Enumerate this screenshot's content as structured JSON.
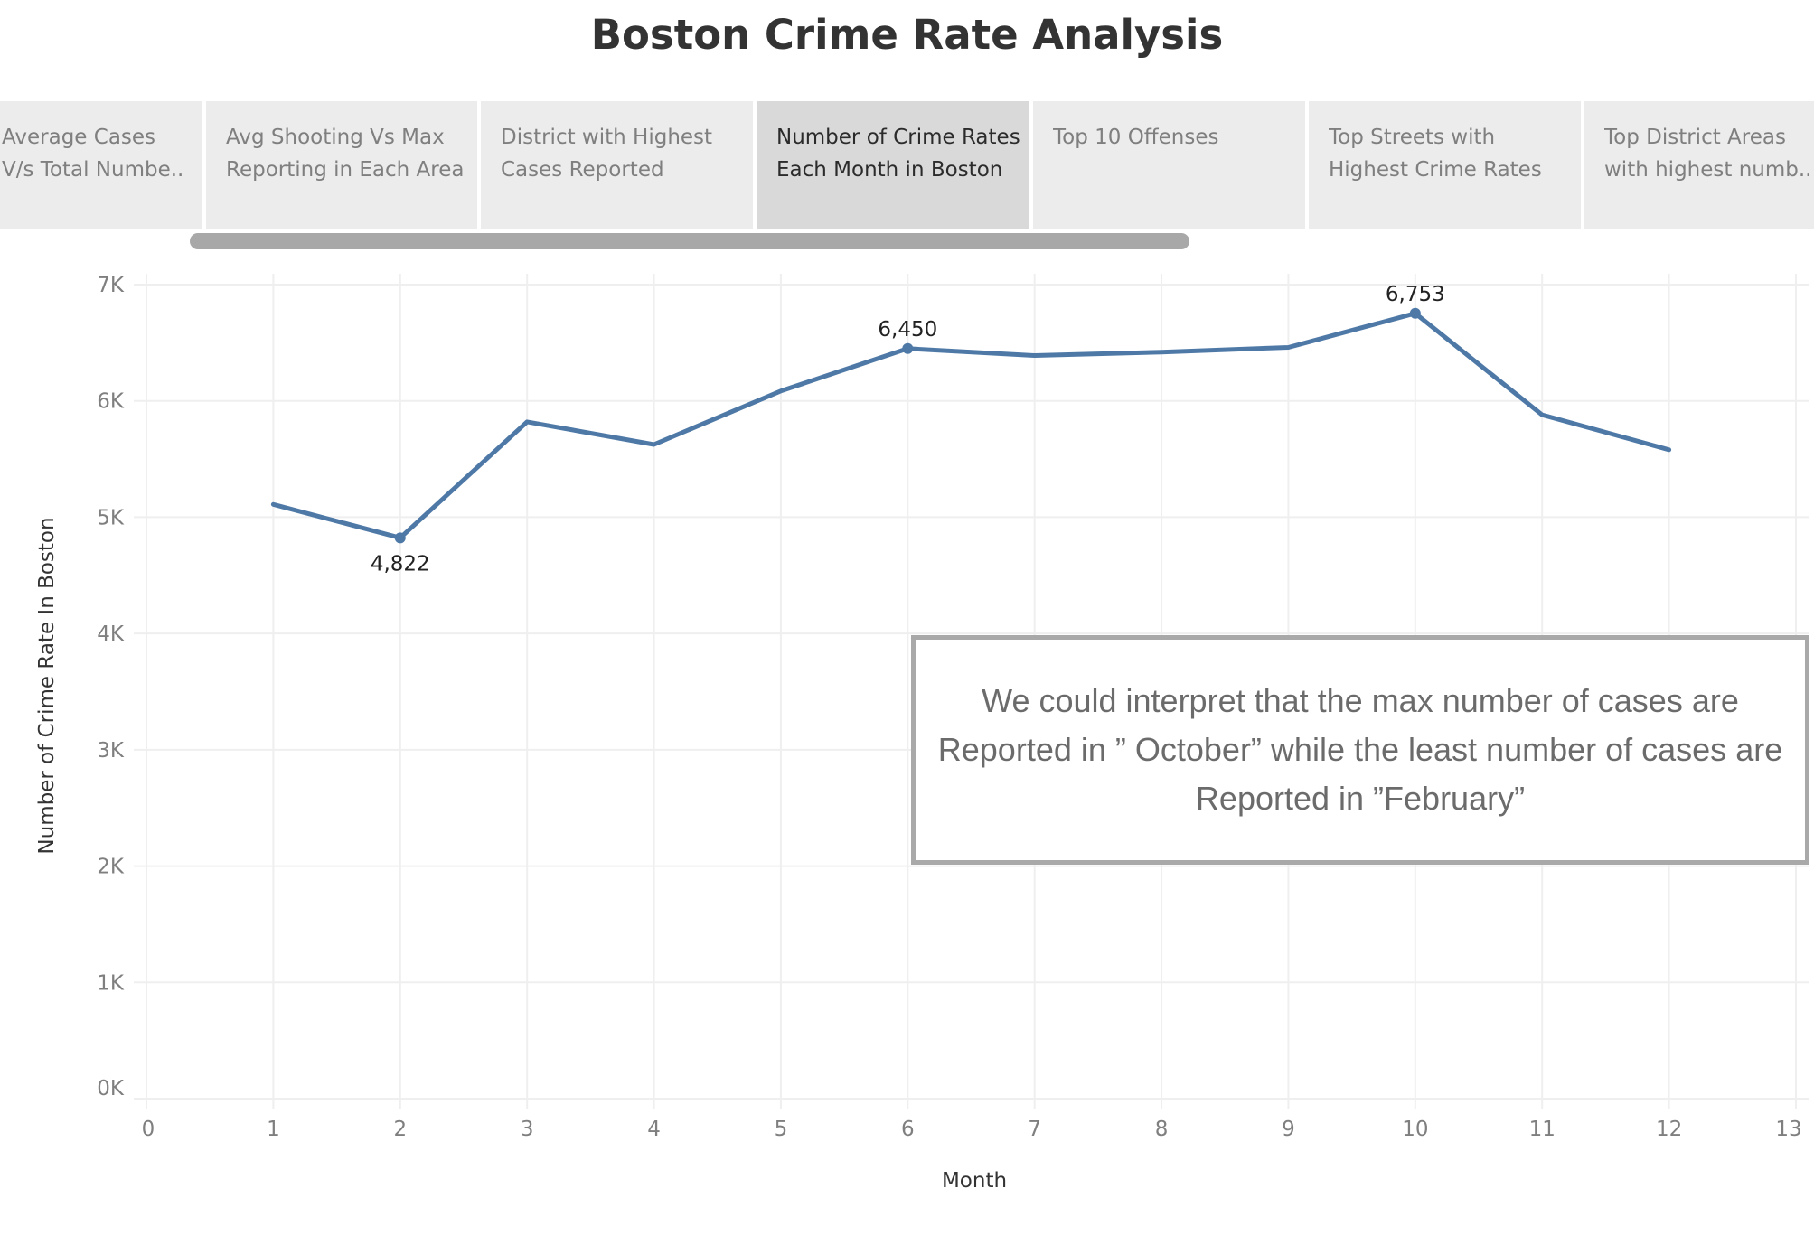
{
  "title": "Boston Crime Rate Analysis",
  "tabs": [
    {
      "line1": "Average Cases",
      "line2": "V/s Total Numbe.."
    },
    {
      "line1": "Avg Shooting Vs Max",
      "line2": "Reporting in Each Area"
    },
    {
      "line1": "District with Highest",
      "line2": "Cases Reported"
    },
    {
      "line1": "Number of Crime Rates",
      "line2": "Each Month in Boston"
    },
    {
      "line1": "Top 10 Offenses",
      "line2": ""
    },
    {
      "line1": "Top Streets with",
      "line2": "Highest Crime Rates"
    },
    {
      "line1": "Top District Areas",
      "line2": "with highest numb.."
    }
  ],
  "active_tab_index": 3,
  "annotation": "We could interpret that the max number of cases are Reported in ” October” while the least number of cases are Reported in ”February”",
  "colors": {
    "line": "#4e79a7",
    "grid": "#efefef",
    "tab_bg": "#ececec",
    "tab_active_bg": "#d9d9d9"
  },
  "chart_data": {
    "type": "line",
    "xlabel": "Month",
    "ylabel": "Number of Crime Rate In Boston",
    "x_ticks": [
      "0",
      "1",
      "2",
      "3",
      "4",
      "5",
      "6",
      "7",
      "8",
      "9",
      "10",
      "11",
      "12",
      "13"
    ],
    "y_ticks": [
      "0K",
      "1K",
      "2K",
      "3K",
      "4K",
      "5K",
      "6K",
      "7K"
    ],
    "xlim": [
      0,
      13
    ],
    "ylim": [
      0,
      7000
    ],
    "grid": true,
    "series": [
      {
        "x": [
          1,
          2,
          3,
          4,
          5,
          6,
          7,
          8,
          9,
          10,
          11,
          12
        ],
        "values": [
          5110,
          4822,
          5820,
          5625,
          6085,
          6450,
          6390,
          6420,
          6460,
          6753,
          5880,
          5580
        ]
      }
    ],
    "labels": [
      {
        "x": 2,
        "value": 4822,
        "text": "4,822",
        "position": "below"
      },
      {
        "x": 6,
        "value": 6450,
        "text": "6,450",
        "position": "above"
      },
      {
        "x": 10,
        "value": 6753,
        "text": "6,753",
        "position": "above"
      }
    ]
  }
}
